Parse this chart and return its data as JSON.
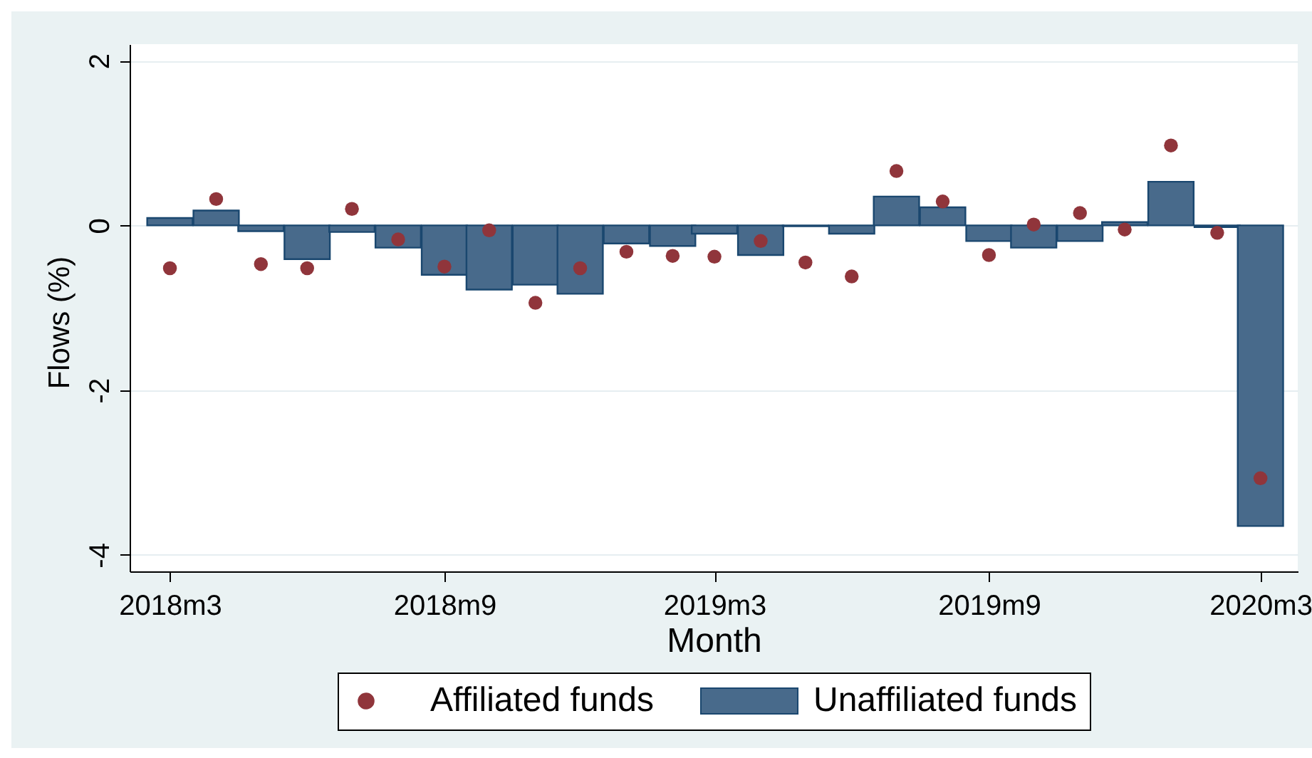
{
  "chart_data": {
    "type": "bar",
    "xlabel": "Month",
    "ylabel": "Flows (%)",
    "x": [
      "2018-03",
      "2018-04",
      "2018-05",
      "2018-06",
      "2018-07",
      "2018-08",
      "2018-09",
      "2018-10",
      "2018-11",
      "2018-12",
      "2019-01",
      "2019-02",
      "2019-03",
      "2019-04",
      "2019-05",
      "2019-06",
      "2019-07",
      "2019-08",
      "2019-09",
      "2019-10",
      "2019-11",
      "2019-12",
      "2020-01",
      "2020-02",
      "2020-03"
    ],
    "series": [
      {
        "name": "Affiliated funds",
        "type": "scatter",
        "color": "#90353b",
        "values": [
          -0.52,
          0.32,
          -0.47,
          -0.52,
          0.2,
          -0.17,
          -0.5,
          -0.06,
          -0.94,
          -0.52,
          -0.32,
          -0.37,
          -0.38,
          -0.19,
          -0.45,
          -0.62,
          0.66,
          0.29,
          -0.36,
          0.01,
          0.15,
          -0.05,
          0.97,
          -0.09,
          -3.07
        ]
      },
      {
        "name": "Unaffiliated funds",
        "color": "#486a8b",
        "values": [
          0.09,
          0.18,
          -0.07,
          -0.41,
          -0.08,
          -0.27,
          -0.6,
          -0.78,
          -0.72,
          -0.83,
          -0.22,
          -0.25,
          -0.1,
          -0.36,
          -0.01,
          -0.1,
          0.35,
          0.22,
          -0.19,
          -0.27,
          -0.19,
          0.04,
          0.53,
          -0.02,
          -3.65
        ]
      }
    ],
    "xlim": [
      "2018-02-02",
      "2020-03-26"
    ],
    "xticks": [
      {
        "value": "2018-03",
        "label": "2018m3"
      },
      {
        "value": "2018-09",
        "label": "2018m9"
      },
      {
        "value": "2019-03",
        "label": "2019m3"
      },
      {
        "value": "2019-09",
        "label": "2019m9"
      },
      {
        "value": "2020-03",
        "label": "2020m3"
      }
    ],
    "ylim": [
      -4.2,
      2.2
    ],
    "yticks": [
      -4,
      -2,
      0,
      2
    ],
    "grid": "y",
    "legend": "bottom"
  }
}
